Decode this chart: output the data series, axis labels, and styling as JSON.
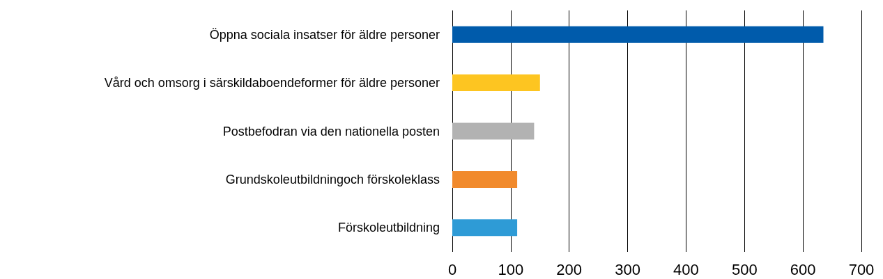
{
  "chart_data": {
    "type": "bar",
    "orientation": "horizontal",
    "categories": [
      "Öppna sociala insatser för äldre personer",
      "Vård och omsorg i särskildaboendeformer för äldre personer",
      "Postbefodran via den nationella posten",
      "Grundskoleutbildningoch förskoleklass",
      "Förskoleutbildning"
    ],
    "values": [
      635,
      150,
      140,
      111,
      111
    ],
    "colors": [
      "#005bab",
      "#fdc521",
      "#b2b2b2",
      "#f18a2c",
      "#2e9bd6"
    ],
    "xlim": [
      0,
      700
    ],
    "xticks": [
      0,
      100,
      200,
      300,
      400,
      500,
      600,
      700
    ],
    "grid": "x"
  }
}
